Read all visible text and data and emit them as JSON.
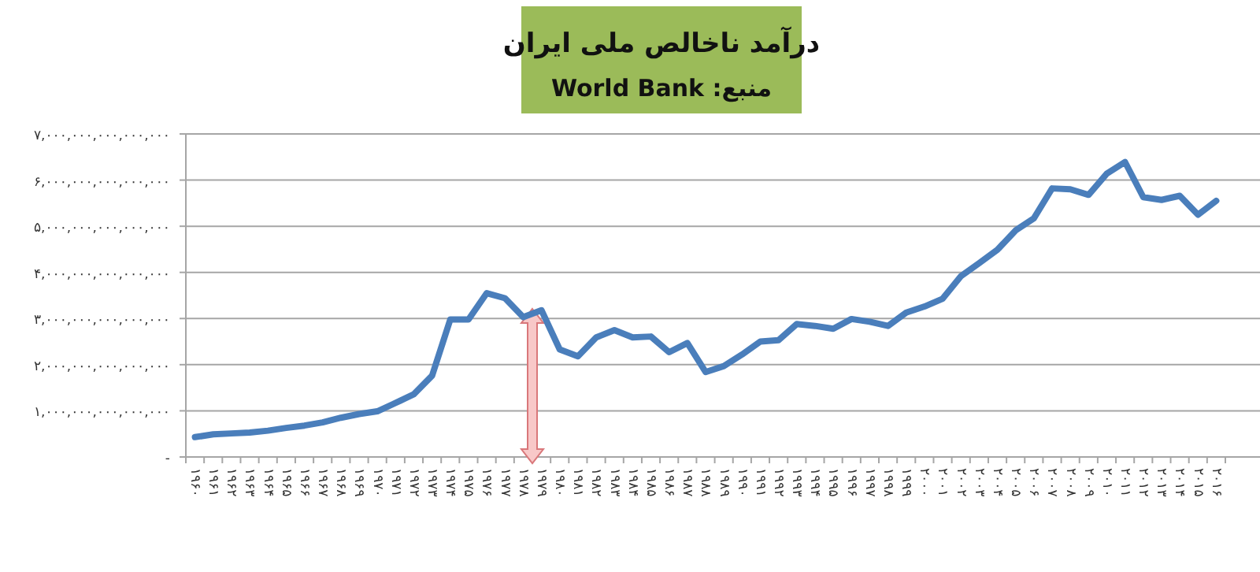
{
  "chart_data": {
    "type": "line",
    "title": "درآمد ناخالص ملی ایران",
    "subtitle": "منبع: World Bank",
    "categories": [
      "۱۹۶۰",
      "۱۹۶۱",
      "۱۹۶۲",
      "۱۹۶۳",
      "۱۹۶۴",
      "۱۹۶۵",
      "۱۹۶۶",
      "۱۹۶۷",
      "۱۹۶۸",
      "۱۹۶۹",
      "۱۹۷۰",
      "۱۹۷۱",
      "۱۹۷۲",
      "۱۹۷۳",
      "۱۹۷۴",
      "۱۹۷۵",
      "۱۹۷۶",
      "۱۹۷۷",
      "۱۹۷۸",
      "۱۹۷۹",
      "۱۹۸۰",
      "۱۹۸۱",
      "۱۹۸۲",
      "۱۹۸۳",
      "۱۹۸۴",
      "۱۹۸۵",
      "۱۹۸۶",
      "۱۹۸۷",
      "۱۹۸۸",
      "۱۹۸۹",
      "۱۹۹۰",
      "۱۹۹۱",
      "۱۹۹۲",
      "۱۹۹۳",
      "۱۹۹۴",
      "۱۹۹۵",
      "۱۹۹۶",
      "۱۹۹۷",
      "۱۹۹۸",
      "۱۹۹۹",
      "۲۰۰۰",
      "۲۰۰۱",
      "۲۰۰۲",
      "۲۰۰۳",
      "۲۰۰۴",
      "۲۰۰۵",
      "۲۰۰۶",
      "۲۰۰۷",
      "۲۰۰۸",
      "۲۰۰۹",
      "۲۰۱۰",
      "۲۰۱۱",
      "۲۰۱۲",
      "۲۰۱۳",
      "۲۰۱۴",
      "۲۰۱۵",
      "۲۰۱۶"
    ],
    "series": [
      {
        "color": "#4a7ebb",
        "values": [
          430000000000000,
          490000000000000,
          510000000000000,
          530000000000000,
          570000000000000,
          630000000000000,
          680000000000000,
          750000000000000,
          850000000000000,
          930000000000000,
          990000000000000,
          1170000000000000,
          1360000000000000,
          1760000000000000,
          2980000000000000,
          2980000000000000,
          3550000000000000,
          3440000000000000,
          3030000000000000,
          3180000000000000,
          2330000000000000,
          2180000000000000,
          2590000000000000,
          2750000000000000,
          2590000000000000,
          2610000000000000,
          2270000000000000,
          2470000000000000,
          1840000000000000,
          1970000000000000,
          2220000000000000,
          2500000000000000,
          2530000000000000,
          2880000000000000,
          2840000000000000,
          2780000000000000,
          2990000000000000,
          2930000000000000,
          2840000000000000,
          3130000000000000,
          3260000000000000,
          3430000000000000,
          3920000000000000,
          4200000000000000,
          4490000000000000,
          4910000000000000,
          5170000000000000,
          5820000000000000,
          5800000000000000,
          5680000000000000,
          6140000000000000,
          6390000000000000,
          5630000000000000,
          5570000000000000,
          5660000000000000,
          5250000000000000,
          5550000000000000
        ]
      }
    ],
    "ylim": [
      0,
      7000000000000000
    ],
    "yticks": [
      {
        "value": 0,
        "label": "-"
      },
      {
        "value": 1000000000000000,
        "label": "۱,۰۰۰,۰۰۰,۰۰۰,۰۰۰,۰۰۰"
      },
      {
        "value": 2000000000000000,
        "label": "۲,۰۰۰,۰۰۰,۰۰۰,۰۰۰,۰۰۰"
      },
      {
        "value": 3000000000000000,
        "label": "۳,۰۰۰,۰۰۰,۰۰۰,۰۰۰,۰۰۰"
      },
      {
        "value": 4000000000000000,
        "label": "۴,۰۰۰,۰۰۰,۰۰۰,۰۰۰,۰۰۰"
      },
      {
        "value": 5000000000000000,
        "label": "۵,۰۰۰,۰۰۰,۰۰۰,۰۰۰,۰۰۰"
      },
      {
        "value": 6000000000000000,
        "label": "۶,۰۰۰,۰۰۰,۰۰۰,۰۰۰,۰۰۰"
      },
      {
        "value": 7000000000000000,
        "label": "۷,۰۰۰,۰۰۰,۰۰۰,۰۰۰,۰۰۰"
      }
    ],
    "grid": "y",
    "marker": "none",
    "line_style": "solid"
  }
}
